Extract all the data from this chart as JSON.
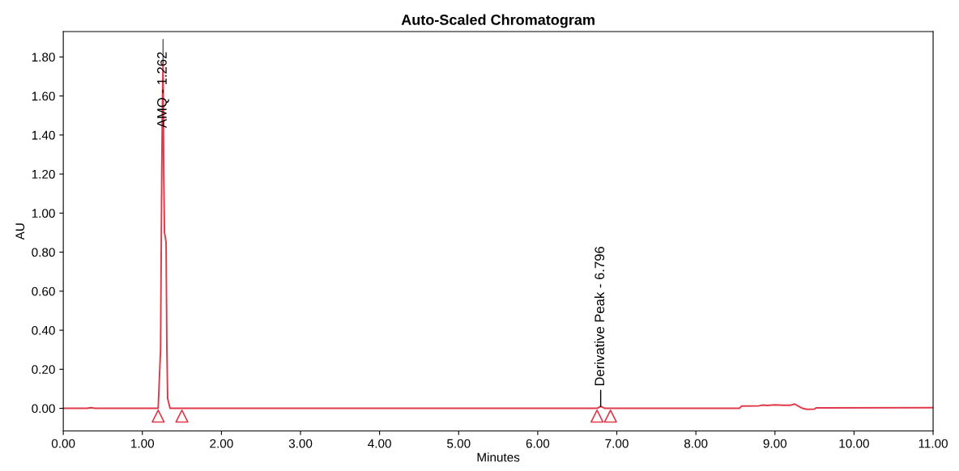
{
  "chart_data": {
    "type": "line",
    "title": "Auto-Scaled Chromatogram",
    "xlabel": "Minutes",
    "ylabel": "AU",
    "xlim": [
      0,
      11
    ],
    "ylim": [
      -0.116,
      1.93
    ],
    "xticks": [
      {
        "value": 0,
        "label": "0.00"
      },
      {
        "value": 1,
        "label": "1.00"
      },
      {
        "value": 2,
        "label": "2.00"
      },
      {
        "value": 3,
        "label": "3.00"
      },
      {
        "value": 4,
        "label": "4.00"
      },
      {
        "value": 5,
        "label": "5.00"
      },
      {
        "value": 6,
        "label": "6.00"
      },
      {
        "value": 7,
        "label": "7.00"
      },
      {
        "value": 8,
        "label": "8.00"
      },
      {
        "value": 9,
        "label": "9.00"
      },
      {
        "value": 10,
        "label": "10.00"
      },
      {
        "value": 11,
        "label": "11.00"
      }
    ],
    "yticks": [
      {
        "value": 0,
        "label": "0.00"
      },
      {
        "value": 0.2,
        "label": "0.20"
      },
      {
        "value": 0.4,
        "label": "0.40"
      },
      {
        "value": 0.6,
        "label": "0.60"
      },
      {
        "value": 0.8,
        "label": "0.80"
      },
      {
        "value": 1.0,
        "label": "1.00"
      },
      {
        "value": 1.2,
        "label": "1.20"
      },
      {
        "value": 1.4,
        "label": "1.40"
      },
      {
        "value": 1.6,
        "label": "1.60"
      },
      {
        "value": 1.8,
        "label": "1.80"
      }
    ],
    "grid": false,
    "legend": false,
    "series": [
      {
        "color": "#e03a4a",
        "x": [
          0,
          0.3,
          0.35,
          0.4,
          1.2,
          1.23,
          1.245,
          1.255,
          1.262,
          1.27,
          1.28,
          1.3,
          1.31,
          1.32,
          1.35,
          6.75,
          6.796,
          6.85,
          8.55,
          8.58,
          8.8,
          8.85,
          8.9,
          9.0,
          9.1,
          9.2,
          9.25,
          9.3,
          9.35,
          9.4,
          9.5,
          9.52,
          11
        ],
        "values": [
          0,
          0,
          0.003,
          0,
          0,
          0.3,
          1.2,
          1.6,
          1.77,
          1.2,
          0.9,
          0.85,
          0.3,
          0.05,
          0,
          0,
          0.01,
          0,
          0,
          0.012,
          0.013,
          0.017,
          0.015,
          0.018,
          0.016,
          0.016,
          0.022,
          0.01,
          0.0,
          -0.005,
          -0.004,
          0.002,
          0.003
        ]
      },
      {
        "type": "scatter",
        "marker": "triangle",
        "color": "#e03a4a",
        "x": [
          1.2,
          1.5,
          6.75,
          6.92
        ],
        "values": [
          -0.04,
          -0.04,
          -0.04,
          -0.04
        ]
      }
    ],
    "annotations": [
      {
        "text": "AMQ - 1.262",
        "x": 1.262,
        "y": 1.77
      },
      {
        "text": "Derivative Peak - 6.796",
        "x": 6.796,
        "y": 0.01
      }
    ]
  }
}
